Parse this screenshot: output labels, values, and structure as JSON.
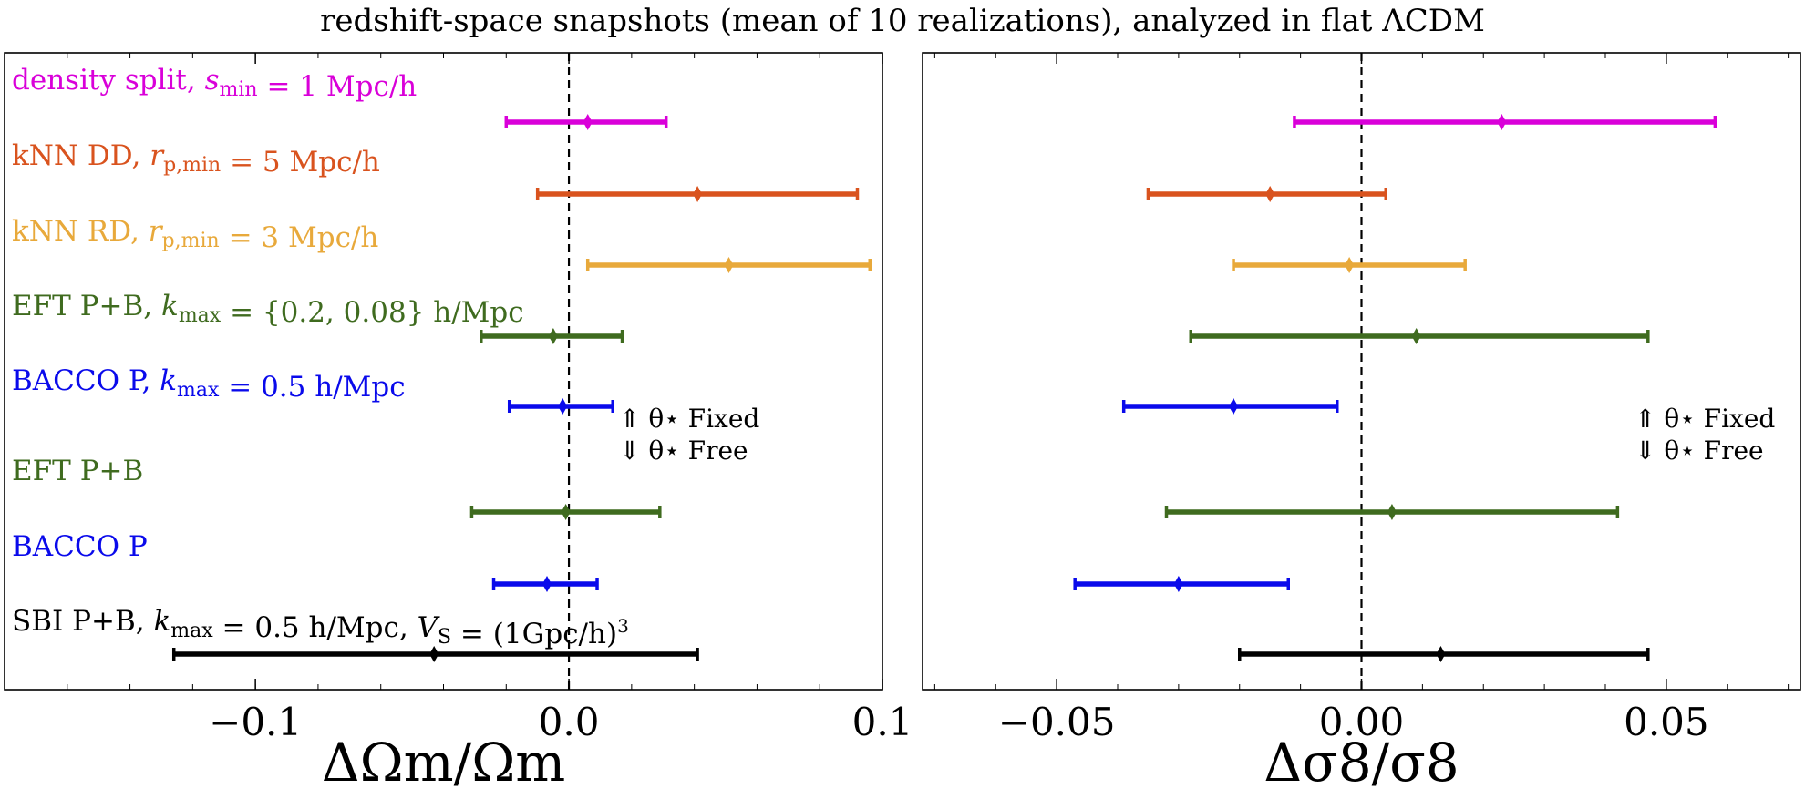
{
  "chart_data": {
    "title": "redshift-space snapshots (mean of 10 realizations), analyzed in flat ΛCDM",
    "type": "errorbar",
    "legend_annotation": [
      "⇑ θ⋆ Fixed",
      "⇓ θ⋆ Free"
    ],
    "rows": [
      {
        "label": "density split, s_min = 1 Mpc/h",
        "color": "#d900d9"
      },
      {
        "label": "kNN DD, r_p,min = 5 Mpc/h",
        "color": "#d9531e"
      },
      {
        "label": "kNN RD, r_p,min = 3 Mpc/h",
        "color": "#e8a93b"
      },
      {
        "label": "EFT P+B, k_max = {0.2, 0.08} h/Mpc",
        "color": "#3f6b1f"
      },
      {
        "label": "BACCO P, k_max = 0.5 h/Mpc",
        "color": "#0a0aeb"
      },
      {
        "label": "EFT P+B",
        "color": "#3f6b1f"
      },
      {
        "label": "BACCO P",
        "color": "#0a0aeb"
      },
      {
        "label": "SBI P+B, k_max = 0.5 h/Mpc, V_S = (1Gpc/h)^3",
        "color": "#000000"
      }
    ],
    "panels": [
      {
        "xlabel": "ΔΩm/Ωm",
        "xlim": [
          -0.18,
          0.1
        ],
        "xticks": [
          -0.1,
          0.0,
          0.1
        ],
        "xtick_labels": [
          "−0.1",
          "0.0",
          "0.1"
        ],
        "reference_line": 0.0,
        "points": [
          {
            "center": 0.006,
            "low": -0.02,
            "high": 0.031
          },
          {
            "center": 0.041,
            "low": -0.01,
            "high": 0.092
          },
          {
            "center": 0.051,
            "low": 0.006,
            "high": 0.096
          },
          {
            "center": -0.005,
            "low": -0.028,
            "high": 0.017
          },
          {
            "center": -0.002,
            "low": -0.019,
            "high": 0.014
          },
          {
            "center": -0.001,
            "low": -0.031,
            "high": 0.029
          },
          {
            "center": -0.007,
            "low": -0.024,
            "high": 0.009
          },
          {
            "center": -0.043,
            "low": -0.126,
            "high": 0.041
          }
        ]
      },
      {
        "xlabel": "Δσ8/σ8",
        "xlim": [
          -0.072,
          0.072
        ],
        "xticks": [
          -0.05,
          0.0,
          0.05
        ],
        "xtick_labels": [
          "−0.05",
          "0.00",
          "0.05"
        ],
        "reference_line": 0.0,
        "points": [
          {
            "center": 0.023,
            "low": -0.011,
            "high": 0.058
          },
          {
            "center": -0.015,
            "low": -0.035,
            "high": 0.004
          },
          {
            "center": -0.002,
            "low": -0.021,
            "high": 0.017
          },
          {
            "center": 0.009,
            "low": -0.028,
            "high": 0.047
          },
          {
            "center": -0.021,
            "low": -0.039,
            "high": -0.004
          },
          {
            "center": 0.005,
            "low": -0.032,
            "high": 0.042
          },
          {
            "center": -0.03,
            "low": -0.047,
            "high": -0.012
          },
          {
            "center": 0.013,
            "low": -0.02,
            "high": 0.047
          }
        ]
      }
    ]
  }
}
